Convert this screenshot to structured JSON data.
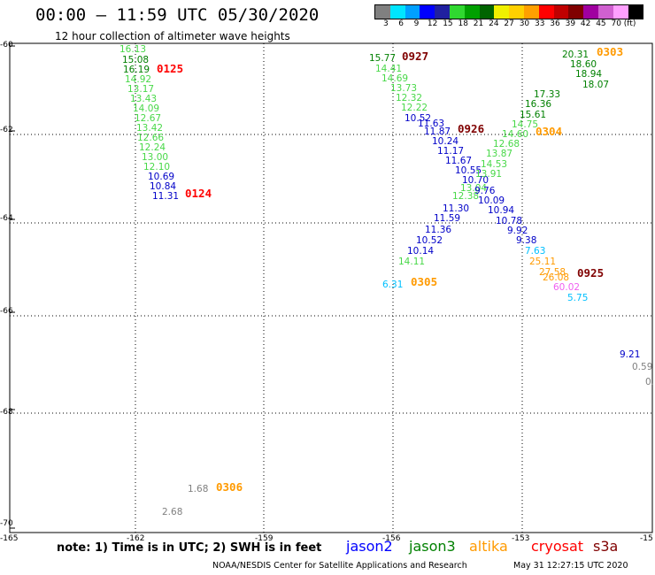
{
  "title": "00:00 – 11:59 UTC 05/30/2020",
  "subtitle": "12 hour collection of altimeter wave heights",
  "colorbar": {
    "colors": [
      "#808080",
      "#00e5ff",
      "#00a0ff",
      "#0000ff",
      "#2020a0",
      "#30d830",
      "#00a000",
      "#006400",
      "#f0f000",
      "#ffd000",
      "#ffa000",
      "#ff0000",
      "#c00000",
      "#800000",
      "#a000a0",
      "#d060d0",
      "#ffa0ff",
      "#000000"
    ],
    "labels": [
      "3",
      "6",
      "9",
      "12",
      "15",
      "18",
      "21",
      "24",
      "27",
      "30",
      "33",
      "36",
      "39",
      "42",
      "45",
      "70",
      "(ft)"
    ]
  },
  "axes": {
    "y_labels": [
      "-60",
      "-62",
      "-64",
      "-66",
      "-68",
      "-70"
    ],
    "x_labels": [
      "-165",
      "-162",
      "-159",
      "-156",
      "-153",
      "-15"
    ]
  },
  "palette": {
    "jason2": "#0000ff",
    "jason3": "#008000",
    "altika": "#ff9a00",
    "cryosat": "#ff0000",
    "s3a": "#800000",
    "green_light": "#48d848",
    "green_dark": "#008000",
    "blue": "#0000c8",
    "cyan": "#00c0ff",
    "orange": "#ff9a00",
    "red": "#ff0000",
    "maroon": "#800000",
    "pink": "#f060f0",
    "grey": "#808080"
  },
  "measurements": [
    {
      "v": "16.13",
      "c": "green_light"
    },
    {
      "v": "15.08",
      "c": "green_dark"
    },
    {
      "v": "16.19",
      "c": "green_dark"
    },
    {
      "v": "14.92",
      "c": "green_light"
    },
    {
      "v": "13.17",
      "c": "green_light"
    },
    {
      "v": "13.43",
      "c": "green_light"
    },
    {
      "v": "14.09",
      "c": "green_light"
    },
    {
      "v": "12.67",
      "c": "green_light"
    },
    {
      "v": "13.42",
      "c": "green_light"
    },
    {
      "v": "12.66",
      "c": "green_light"
    },
    {
      "v": "12.24",
      "c": "green_light"
    },
    {
      "v": "13.00",
      "c": "green_light"
    },
    {
      "v": "12.10",
      "c": "green_light"
    },
    {
      "v": "10.69",
      "c": "blue"
    },
    {
      "v": "10.84",
      "c": "blue"
    },
    {
      "v": "11.31",
      "c": "blue"
    },
    {
      "v": "15.77",
      "c": "green_dark"
    },
    {
      "v": "14.41",
      "c": "green_light"
    },
    {
      "v": "14.69",
      "c": "green_light"
    },
    {
      "v": "13.73",
      "c": "green_light"
    },
    {
      "v": "12.32",
      "c": "green_light"
    },
    {
      "v": "12.22",
      "c": "green_light"
    },
    {
      "v": "10.52",
      "c": "blue"
    },
    {
      "v": "11.63",
      "c": "blue"
    },
    {
      "v": "11.87",
      "c": "blue"
    },
    {
      "v": "10.24",
      "c": "blue"
    },
    {
      "v": "11.17",
      "c": "blue"
    },
    {
      "v": "11.67",
      "c": "blue"
    },
    {
      "v": "10.55",
      "c": "blue"
    },
    {
      "v": "10.70",
      "c": "blue"
    },
    {
      "v": "13.04",
      "c": "green_light"
    },
    {
      "v": "12.38",
      "c": "green_light"
    },
    {
      "v": "9.76",
      "c": "blue"
    },
    {
      "v": "10.09",
      "c": "blue"
    },
    {
      "v": "11.30",
      "c": "blue"
    },
    {
      "v": "10.94",
      "c": "blue"
    },
    {
      "v": "11.59",
      "c": "blue"
    },
    {
      "v": "10.78",
      "c": "blue"
    },
    {
      "v": "11.36",
      "c": "blue"
    },
    {
      "v": "9.92",
      "c": "blue"
    },
    {
      "v": "10.52",
      "c": "blue"
    },
    {
      "v": "9.38",
      "c": "blue"
    },
    {
      "v": "10.14",
      "c": "blue"
    },
    {
      "v": "7.63",
      "c": "cyan"
    },
    {
      "v": "14.11",
      "c": "green_light"
    },
    {
      "v": "25.11",
      "c": "orange"
    },
    {
      "v": "6.31",
      "c": "cyan"
    },
    {
      "v": "27.58",
      "c": "orange"
    },
    {
      "v": "26.08",
      "c": "orange"
    },
    {
      "v": "60.02",
      "c": "pink"
    },
    {
      "v": "5.75",
      "c": "cyan"
    },
    {
      "v": "20.31",
      "c": "green_dark"
    },
    {
      "v": "18.60",
      "c": "green_dark"
    },
    {
      "v": "18.94",
      "c": "green_dark"
    },
    {
      "v": "18.07",
      "c": "green_dark"
    },
    {
      "v": "17.33",
      "c": "green_dark"
    },
    {
      "v": "16.36",
      "c": "green_dark"
    },
    {
      "v": "15.61",
      "c": "green_dark"
    },
    {
      "v": "14.75",
      "c": "green_light"
    },
    {
      "v": "14.60",
      "c": "green_light"
    },
    {
      "v": "12.68",
      "c": "green_light"
    },
    {
      "v": "13.87",
      "c": "green_light"
    },
    {
      "v": "14.53",
      "c": "green_light"
    },
    {
      "v": "13.91",
      "c": "green_light"
    },
    {
      "v": "9.21",
      "c": "blue"
    },
    {
      "v": "0.59",
      "c": "grey"
    },
    {
      "v": "0.",
      "c": "grey"
    },
    {
      "v": "1.68",
      "c": "grey"
    },
    {
      "v": "2.68",
      "c": "grey"
    }
  ],
  "time_labels": [
    {
      "v": "0125",
      "c": "red"
    },
    {
      "v": "0124",
      "c": "red"
    },
    {
      "v": "0927",
      "c": "maroon"
    },
    {
      "v": "0926",
      "c": "maroon"
    },
    {
      "v": "0303",
      "c": "orange"
    },
    {
      "v": "0304",
      "c": "orange"
    },
    {
      "v": "0305",
      "c": "orange"
    },
    {
      "v": "0925",
      "c": "maroon"
    },
    {
      "v": "0306",
      "c": "orange"
    }
  ],
  "note": "note: 1) Time is in UTC; 2) SWH is in feet",
  "legend": [
    "jason2",
    "jason3",
    "altika",
    "cryosat",
    "s3a"
  ],
  "credit": "NOAA/NESDIS Center for Satellite Applications and Research",
  "timestamp": "May 31 12:27:15 UTC 2020"
}
